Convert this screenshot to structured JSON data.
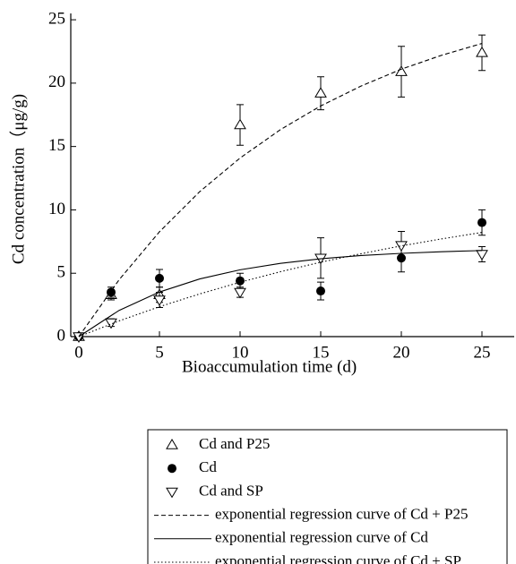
{
  "chart_data": {
    "type": "scatter",
    "xlabel": "Bioaccumulation time (d)",
    "ylabel": "Cd concentration（μg/g)",
    "xlim": [
      -0.5,
      27
    ],
    "ylim": [
      0,
      25.5
    ],
    "xticks": [
      0,
      5,
      10,
      15,
      20,
      25
    ],
    "yticks": [
      0,
      5,
      10,
      15,
      20,
      25
    ],
    "series": [
      {
        "name": "Cd and P25",
        "type": "scatter",
        "marker": "triangle-up",
        "color": "#000000",
        "x": [
          0,
          2,
          5,
          10,
          15,
          20,
          25
        ],
        "values": [
          0,
          3.3,
          3.3,
          16.7,
          19.2,
          20.9,
          22.4
        ],
        "errors": [
          0,
          0.4,
          0.6,
          1.6,
          1.3,
          2.0,
          1.4
        ]
      },
      {
        "name": "Cd",
        "type": "scatter",
        "marker": "circle",
        "color": "#000000",
        "x": [
          0,
          2,
          5,
          10,
          15,
          20,
          25
        ],
        "values": [
          0,
          3.5,
          4.6,
          4.4,
          3.6,
          6.2,
          9.0
        ],
        "errors": [
          0,
          0.4,
          0.7,
          0.6,
          0.7,
          1.1,
          1.0
        ]
      },
      {
        "name": "Cd and SP",
        "type": "scatter",
        "marker": "triangle-down",
        "color": "#000000",
        "x": [
          0,
          2,
          5,
          10,
          15,
          20,
          25
        ],
        "values": [
          0,
          1.1,
          2.9,
          3.5,
          6.2,
          7.2,
          6.5
        ],
        "errors": [
          0,
          0.3,
          0.6,
          0.4,
          1.6,
          1.1,
          0.6
        ]
      },
      {
        "name": "exponential regression curve of Cd + P25",
        "type": "line",
        "dash": "5,3",
        "color": "#000000",
        "x": [
          0,
          2.5,
          5,
          7.5,
          10,
          12.5,
          15,
          17.5,
          20,
          22.5,
          25
        ],
        "values": [
          0,
          4.49,
          8.27,
          11.44,
          14.09,
          16.33,
          18.2,
          19.77,
          21.1,
          22.2,
          23.13
        ]
      },
      {
        "name": "exponential regression curve of Cd",
        "type": "line",
        "dash": "none",
        "color": "#000000",
        "x": [
          0,
          2.5,
          5,
          7.5,
          10,
          12.5,
          15,
          17.5,
          20,
          22.5,
          25
        ],
        "values": [
          0,
          2.07,
          3.52,
          4.55,
          5.27,
          5.78,
          6.14,
          6.4,
          6.57,
          6.7,
          6.79
        ]
      },
      {
        "name": "exponential regression curve of Cd + SP",
        "type": "line",
        "dash": "1.5,2.5",
        "color": "#000000",
        "x": [
          0,
          2.5,
          5,
          7.5,
          10,
          12.5,
          15,
          17.5,
          20,
          22.5,
          25
        ],
        "values": [
          0,
          1.24,
          2.36,
          3.37,
          4.29,
          5.12,
          5.87,
          6.54,
          7.16,
          7.71,
          8.22
        ]
      }
    ]
  }
}
